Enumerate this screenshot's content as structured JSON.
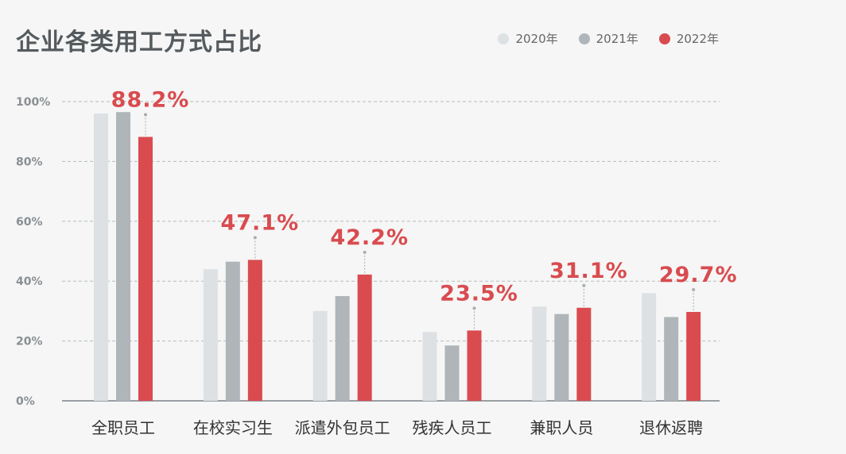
{
  "chart_data": {
    "type": "bar",
    "title": "企业各类用工方式占比",
    "categories": [
      "全职员工",
      "在校实习生",
      "派遣外包员工",
      "残疾人员工",
      "兼职人员",
      "退休返聘"
    ],
    "series": [
      {
        "name": "2020年",
        "color": "#dde1e4",
        "values": [
          96,
          44,
          30,
          23,
          31.5,
          36
        ]
      },
      {
        "name": "2021年",
        "color": "#b0b5b9",
        "values": [
          96.5,
          46.5,
          35,
          18.5,
          29,
          28
        ]
      },
      {
        "name": "2022年",
        "color": "#d94b4f",
        "values": [
          88.2,
          47.1,
          42.2,
          23.5,
          31.1,
          29.7
        ]
      }
    ],
    "data_labels": [
      "88.2%",
      "47.1%",
      "42.2%",
      "23.5%",
      "31.1%",
      "29.7%"
    ],
    "yticks": [
      "0%",
      "20%",
      "40%",
      "60%",
      "80%",
      "100%"
    ],
    "ylim": [
      0,
      100
    ],
    "grid": true,
    "legend": "top-right"
  }
}
